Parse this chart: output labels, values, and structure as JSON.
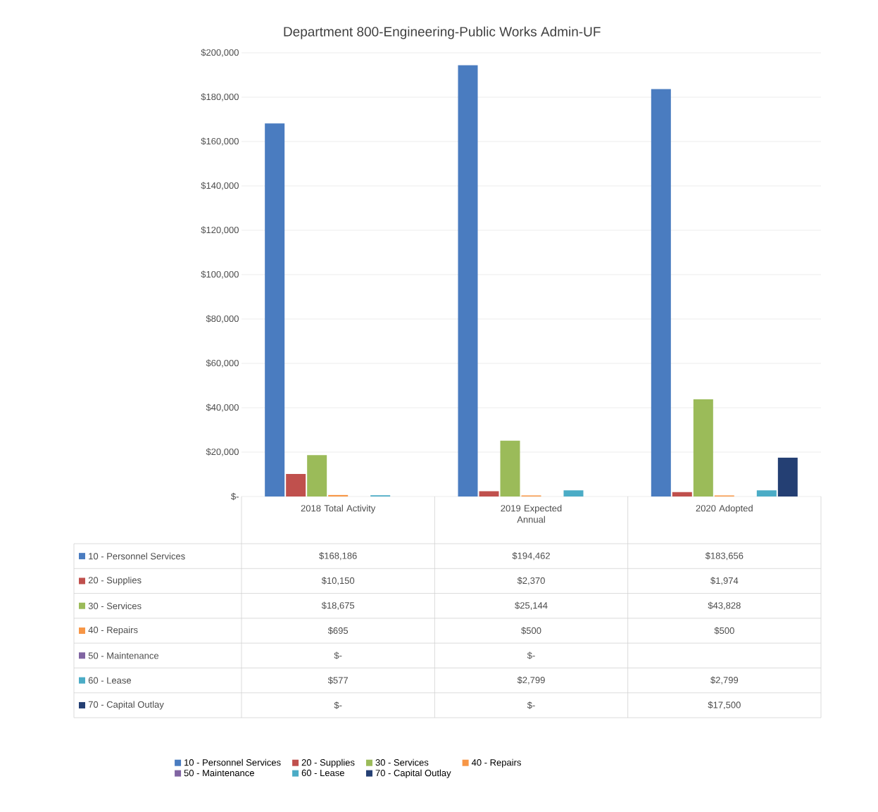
{
  "chart_data": {
    "type": "bar",
    "title": "Department 800-Engineering-Public Works Admin-UF",
    "categories": [
      "2018 Total Activity",
      "2019 Expected Annual",
      "2020 Adopted"
    ],
    "series": [
      {
        "name": "10 - Personnel Services",
        "color": "#4a7cc0",
        "values": [
          168186,
          194462,
          183656
        ],
        "value_labels": [
          "$168,186",
          "$194,462",
          "$183,656"
        ]
      },
      {
        "name": "20 - Supplies",
        "color": "#c0504d",
        "values": [
          10150,
          2370,
          1974
        ],
        "value_labels": [
          "$10,150",
          "$2,370",
          "$1,974"
        ]
      },
      {
        "name": "30 - Services",
        "color": "#9bbb59",
        "values": [
          18675,
          25144,
          43828
        ],
        "value_labels": [
          "$18,675",
          "$25,144",
          "$43,828"
        ]
      },
      {
        "name": "40 - Repairs",
        "color": "#f79646",
        "values": [
          695,
          500,
          500
        ],
        "value_labels": [
          "$695",
          "$500",
          "$500"
        ]
      },
      {
        "name": "50 - Maintenance",
        "color": "#8064a2",
        "values": [
          0,
          0,
          null
        ],
        "value_labels": [
          "$-",
          "$-",
          null
        ]
      },
      {
        "name": "60 - Lease",
        "color": "#4bacc6",
        "values": [
          577,
          2799,
          2799
        ],
        "value_labels": [
          "$577",
          "$2,799",
          "$2,799"
        ]
      },
      {
        "name": "70 - Capital Outlay",
        "color": "#243f73",
        "values": [
          0,
          0,
          17500
        ],
        "value_labels": [
          "$-",
          "$-",
          "$17,500"
        ]
      }
    ],
    "ylim": [
      0,
      200000
    ],
    "yticks": [
      {
        "value": 0,
        "label": "$-"
      },
      {
        "value": 20000,
        "label": "$20,000"
      },
      {
        "value": 40000,
        "label": "$40,000"
      },
      {
        "value": 60000,
        "label": "$60,000"
      },
      {
        "value": 80000,
        "label": "$80,000"
      },
      {
        "value": 100000,
        "label": "$100,000"
      },
      {
        "value": 120000,
        "label": "$120,000"
      },
      {
        "value": 140000,
        "label": "$140,000"
      },
      {
        "value": 160000,
        "label": "$160,000"
      },
      {
        "value": 180000,
        "label": "$180,000"
      },
      {
        "value": 200000,
        "label": "$200,000"
      }
    ],
    "grid": "y",
    "legend": "bottom"
  }
}
